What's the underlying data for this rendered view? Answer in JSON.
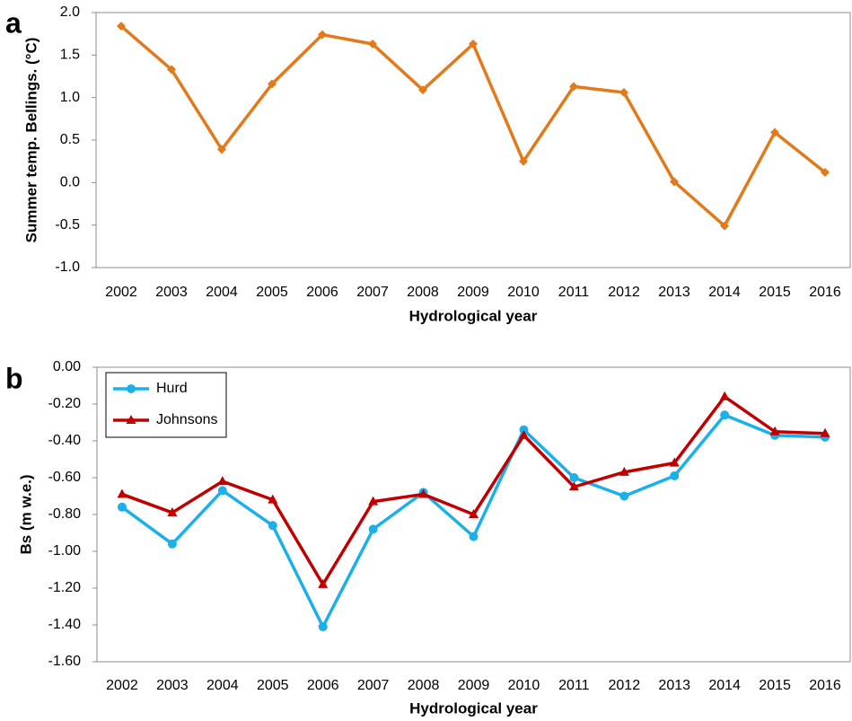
{
  "chart_data": [
    {
      "type": "line",
      "panel": "a",
      "ylabel": "Summer temp. Bellings. (°C)",
      "xlabel": "Hydrological year",
      "categories": [
        "2002",
        "2003",
        "2004",
        "2005",
        "2006",
        "2007",
        "2008",
        "2009",
        "2010",
        "2011",
        "2012",
        "2013",
        "2014",
        "2015",
        "2016"
      ],
      "values": [
        1.84,
        1.33,
        0.39,
        1.16,
        1.74,
        1.63,
        1.09,
        1.63,
        0.25,
        1.13,
        1.06,
        0.01,
        -0.51,
        0.59,
        0.12
      ],
      "color": "#e2791b",
      "marker": "diamond",
      "ylim": [
        -1,
        2
      ],
      "yticks": [
        {
          "value": 2,
          "label": "2.0"
        },
        1.5,
        {
          "value": 1,
          "label": "1.0"
        },
        0.5,
        {
          "value": 0,
          "label": "0.0"
        },
        -0.5,
        {
          "value": -1,
          "label": "-1.0"
        }
      ],
      "grid": false
    },
    {
      "type": "line",
      "panel": "b",
      "ylabel": "Bs (m w.e.)",
      "xlabel": "Hydrological year",
      "categories": [
        "2002",
        "2003",
        "2004",
        "2005",
        "2006",
        "2007",
        "2008",
        "2009",
        "2010",
        "2011",
        "2012",
        "2013",
        "2014",
        "2015",
        "2016"
      ],
      "series": [
        {
          "name": "Hurd",
          "color": "#1ab0ea",
          "marker": "circle",
          "values": [
            -0.76,
            -0.96,
            -0.67,
            -0.86,
            -1.41,
            -0.88,
            -0.68,
            -0.92,
            -0.34,
            -0.6,
            -0.7,
            -0.59,
            -0.26,
            -0.37,
            -0.38
          ]
        },
        {
          "name": "Johnsons",
          "color": "#c00000",
          "marker": "triangle",
          "values": [
            -0.69,
            -0.79,
            -0.62,
            -0.72,
            -1.18,
            -0.73,
            -0.69,
            -0.8,
            -0.37,
            -0.65,
            -0.57,
            -0.52,
            -0.16,
            -0.35,
            -0.36
          ]
        }
      ],
      "ylim": [
        -1.6,
        0
      ],
      "yticks": [
        {
          "value": 0,
          "label": "0.00"
        },
        {
          "value": -0.2,
          "label": "-0.20"
        },
        {
          "value": -0.4,
          "label": "-0.40"
        },
        {
          "value": -0.6,
          "label": "-0.60"
        },
        {
          "value": -0.8,
          "label": "-0.80"
        },
        {
          "value": -1,
          "label": "-1.00"
        },
        {
          "value": -1.2,
          "label": "-1.20"
        },
        {
          "value": -1.4,
          "label": "-1.40"
        },
        {
          "value": -1.6,
          "label": "-1.60"
        }
      ],
      "legend": "upper left",
      "grid": false
    }
  ]
}
